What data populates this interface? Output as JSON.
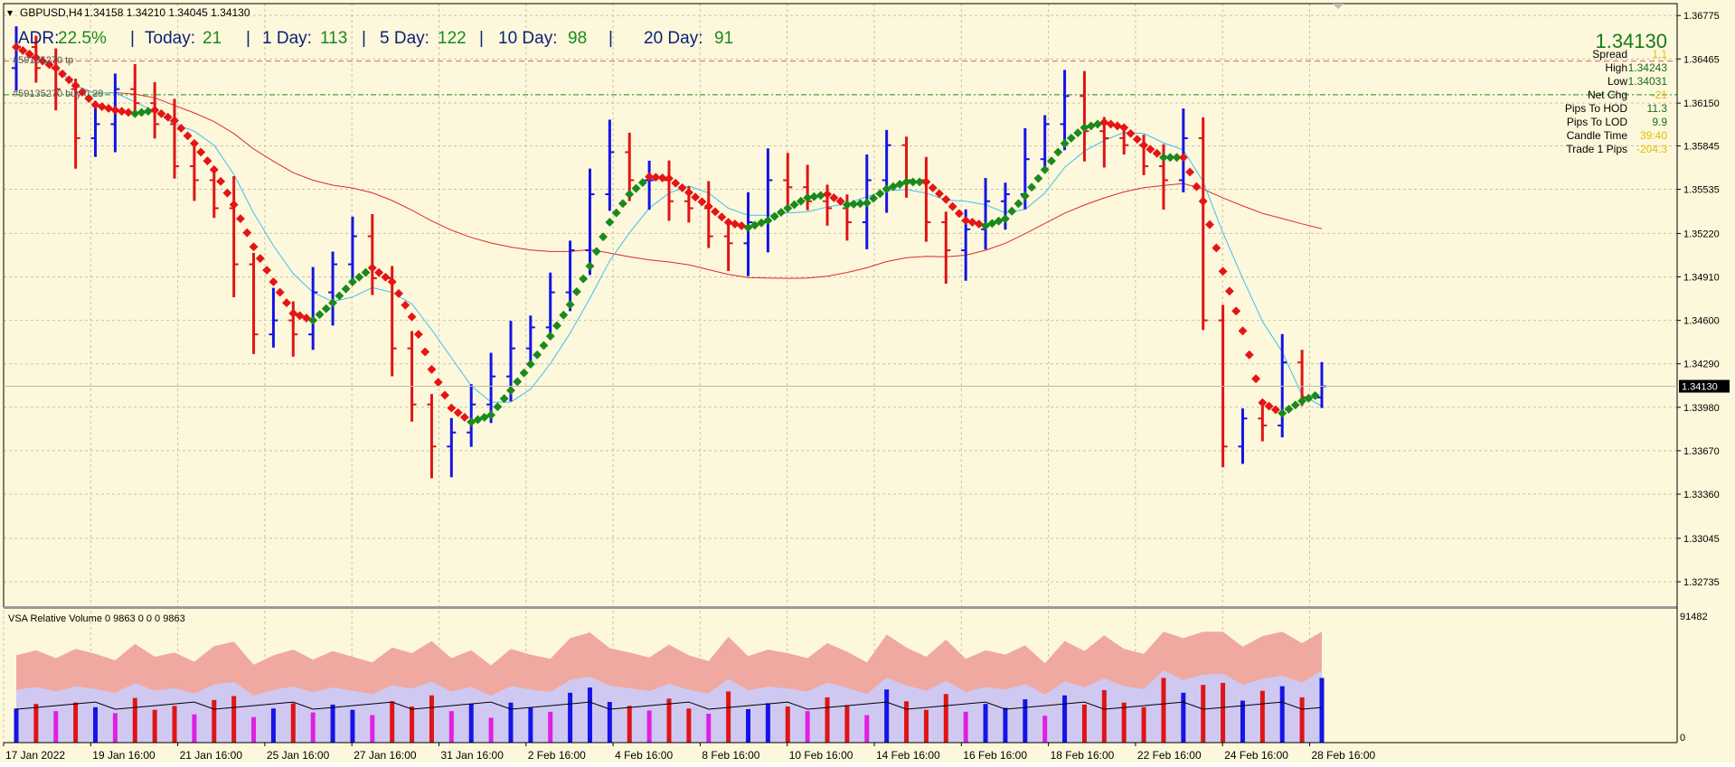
{
  "header": {
    "symbol": "GBPUSD,H4",
    "ohlc": "1.34158 1.34210 1.34045 1.34130",
    "adr_label": "ADR:",
    "adr_value": "22.5%",
    "today_label": "Today:",
    "today_value": "21",
    "d1_label": "1 Day:",
    "d1_value": "113",
    "d5_label": "5 Day:",
    "d5_value": "122",
    "d10_label": "10 Day:",
    "d10_value": "98",
    "d20_label": "20 Day:",
    "d20_value": "91",
    "sep": "|"
  },
  "order_lines": {
    "line1_label": "#59135270 tp",
    "line2_label": "#59135270 buy 0.28"
  },
  "info_panel": {
    "price": "1.34130",
    "rows": [
      {
        "label": "Spread",
        "value": "1.1"
      },
      {
        "label": "High",
        "value": "1.34243"
      },
      {
        "label": "Low",
        "value": "1.34031"
      },
      {
        "label": "Net Chg",
        "value": "-21"
      },
      {
        "label": "Pips To HOD",
        "value": "11.3"
      },
      {
        "label": "Pips To LOD",
        "value": "9.9"
      },
      {
        "label": "Candle Time",
        "value": "39:40"
      },
      {
        "label": "Trade 1 Pips",
        "value": "-204.3"
      }
    ]
  },
  "volume_panel": {
    "title": "VSA Relative Volume 0 9863 0 0 0 9863",
    "max_label": "91482",
    "zero_label": "0"
  },
  "colors": {
    "background": "#fdf8dc",
    "up_bar": "#1414e6",
    "down_bar": "#e01414",
    "ma_fast": "#3cbff0",
    "ma_slow": "#e02828",
    "trend_down": "#e61414",
    "trend_up": "#1a8a1a",
    "grid": "#c8c3a8"
  },
  "chart_data": {
    "type": "ohlc",
    "symbol": "GBPUSD",
    "timeframe": "H4",
    "last_price": 1.3413,
    "ylim": [
      1.3258,
      1.3686
    ],
    "y_ticks": [
      "1.36775",
      "1.36465",
      "1.36150",
      "1.35845",
      "1.35535",
      "1.35220",
      "1.34910",
      "1.34600",
      "1.34290",
      "1.33980",
      "1.33670",
      "1.33360",
      "1.33045",
      "1.32735"
    ],
    "x_ticks": [
      "17 Jan 2022",
      "19 Jan 16:00",
      "21 Jan 16:00",
      "25 Jan 16:00",
      "27 Jan 16:00",
      "31 Jan 16:00",
      "2 Feb 16:00",
      "4 Feb 16:00",
      "8 Feb 16:00",
      "10 Feb 16:00",
      "14 Feb 16:00",
      "16 Feb 16:00",
      "18 Feb 16:00",
      "22 Feb 16:00",
      "24 Feb 16:00",
      "28 Feb 16:00"
    ],
    "series": [
      {
        "name": "close",
        "values": [
          1.3655,
          1.364,
          1.3625,
          1.359,
          1.36,
          1.3625,
          1.3615,
          1.36,
          1.357,
          1.356,
          1.354,
          1.35,
          1.345,
          1.346,
          1.345,
          1.348,
          1.35,
          1.352,
          1.349,
          1.344,
          1.34,
          1.337,
          1.338,
          1.34,
          1.342,
          1.344,
          1.3455,
          1.348,
          1.351,
          1.355,
          1.358,
          1.356,
          1.356,
          1.3545,
          1.354,
          1.352,
          1.3515,
          1.353,
          1.356,
          1.3555,
          1.3545,
          1.354,
          1.353,
          1.356,
          1.3585,
          1.356,
          1.353,
          1.351,
          1.3525,
          1.3545,
          1.355,
          1.3575,
          1.36,
          1.362,
          1.3595,
          1.359,
          1.3585,
          1.357,
          1.356,
          1.359,
          1.346,
          1.337,
          1.339,
          1.3385,
          1.343,
          1.3405,
          1.3413
        ]
      }
    ],
    "volume": [
      5200,
      5900,
      4800,
      6100,
      5400,
      4500,
      6800,
      5000,
      5600,
      4300,
      6500,
      7100,
      3900,
      5200,
      6000,
      4600,
      5800,
      5000,
      4200,
      6300,
      5500,
      7200,
      4800,
      5900,
      3800,
      6100,
      5300,
      4700,
      7600,
      8400,
      6200,
      5600,
      4900,
      6700,
      5200,
      4400,
      7800,
      5100,
      6000,
      5500,
      4800,
      6900,
      5700,
      4200,
      8100,
      6300,
      5000,
      7400,
      4700,
      5900,
      5300,
      6600,
      4100,
      7200,
      5800,
      8000,
      6100,
      5400,
      9863,
      7600,
      8800,
      9100,
      6400,
      7900,
      8600,
      6900,
      9863
    ],
    "ma_fast_last": 1.3488,
    "ma_slow_last": 1.3518,
    "order_level_tp": 1.3645,
    "order_level_buy": 1.3621
  }
}
